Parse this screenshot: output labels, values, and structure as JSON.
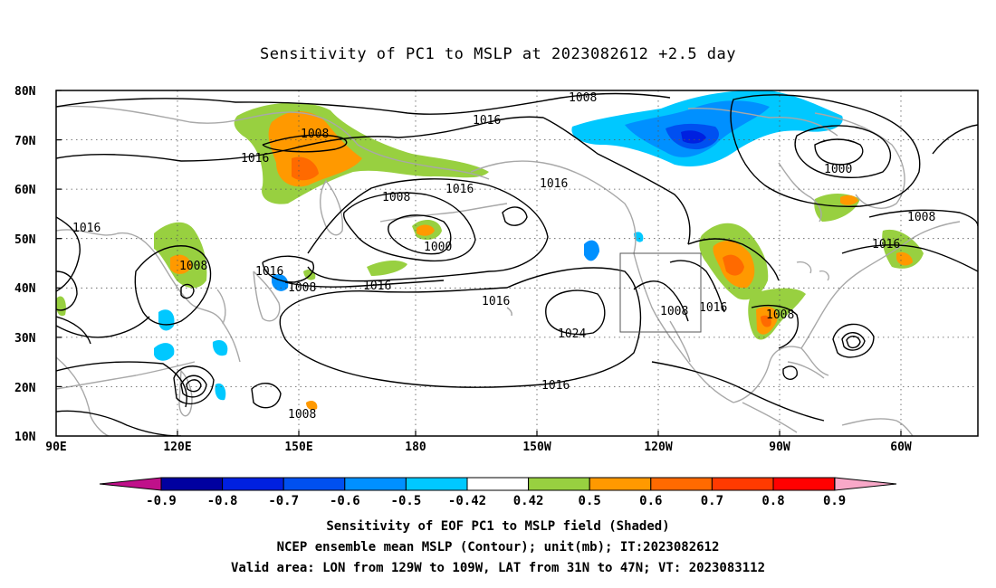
{
  "title": "Sensitivity of PC1 to MSLP at 2023082612 +2.5 day",
  "lat_labels": [
    "80N",
    "70N",
    "60N",
    "50N",
    "40N",
    "30N",
    "20N",
    "10N"
  ],
  "lon_labels": [
    "90E",
    "120E",
    "150E",
    "180",
    "150W",
    "120W",
    "90W",
    "60W"
  ],
  "contour_labels": {
    "c1008_arctic": "1008",
    "c1016_npac": "1016",
    "c1008_sib": "1008",
    "c1016_sib": "1016",
    "c1008_aleut": "1008",
    "c1000_aleut": "1000",
    "c1016_aleut": "1016",
    "c1016_gulf": "1016",
    "c1016_w": "1016",
    "c1008_china": "1008",
    "c1016_japan": "1016",
    "c1008_japan": "1008",
    "c1016_kur": "1016",
    "c1016_hi": "1016",
    "c1024_hi": "1024",
    "c1016_trop": "1016",
    "c1008_trop": "1008",
    "c1008_sw": "1008",
    "c1016_sw": "1016",
    "c1008_gulf": "1008",
    "c1000_lab": "1000",
    "c1008_atl": "1008",
    "c1016_atl": "1016"
  },
  "colorbar": {
    "labels": [
      "-0.9",
      "-0.8",
      "-0.7",
      "-0.6",
      "-0.5",
      "-0.42",
      "0.42",
      "0.5",
      "0.6",
      "0.7",
      "0.8",
      "0.9"
    ],
    "colors": [
      "#0000a0",
      "#0020e0",
      "#0050f0",
      "#0090ff",
      "#00c8ff",
      "#ffffff",
      "#98d040",
      "#ff9900",
      "#ff6a00",
      "#ff3a00",
      "#ff0000"
    ],
    "low_color": "#c0108a",
    "high_color": "#f8a8c8"
  },
  "footer": {
    "line1": "Sensitivity of EOF PC1 to MSLP field (Shaded)",
    "line2": "NCEP ensemble mean MSLP (Contour); unit(mb); IT:2023082612",
    "line3": "Valid area: LON from 129W to 109W, LAT from 31N to 47N; VT: 2023083112"
  }
}
